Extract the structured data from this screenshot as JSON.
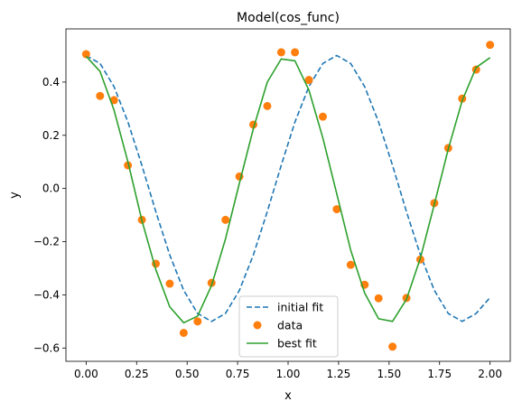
{
  "chart_data": {
    "type": "line",
    "title": "Model(cos_func)",
    "xlabel": "x",
    "ylabel": "y",
    "xlim": [
      -0.1,
      2.1
    ],
    "ylim": [
      -0.65,
      0.6
    ],
    "xticks": [
      0.0,
      0.25,
      0.5,
      0.75,
      1.0,
      1.25,
      1.5,
      1.75,
      2.0
    ],
    "xtick_labels": [
      "0.00",
      "0.25",
      "0.50",
      "0.75",
      "1.00",
      "1.25",
      "1.50",
      "1.75",
      "2.00"
    ],
    "yticks": [
      -0.6,
      -0.4,
      -0.2,
      0.0,
      0.2,
      0.4
    ],
    "ytick_labels": [
      "−0.6",
      "−0.4",
      "−0.2",
      "0.0",
      "0.2",
      "0.4"
    ],
    "grid": false,
    "legend_position": "lower-center",
    "series": [
      {
        "name": "initial fit",
        "style": "dashed",
        "color": "#1f77b4",
        "x": [
          0.0,
          0.069,
          0.138,
          0.207,
          0.276,
          0.345,
          0.414,
          0.483,
          0.552,
          0.621,
          0.69,
          0.759,
          0.828,
          0.897,
          0.966,
          1.034,
          1.103,
          1.172,
          1.241,
          1.31,
          1.379,
          1.448,
          1.517,
          1.586,
          1.655,
          1.724,
          1.793,
          1.862,
          1.931,
          2.0
        ],
        "y": [
          0.5,
          0.47,
          0.383,
          0.25,
          0.087,
          -0.087,
          -0.25,
          -0.383,
          -0.47,
          -0.5,
          -0.47,
          -0.383,
          -0.25,
          -0.087,
          0.087,
          0.25,
          0.383,
          0.47,
          0.5,
          0.47,
          0.383,
          0.25,
          0.087,
          -0.087,
          -0.25,
          -0.383,
          -0.47,
          -0.5,
          -0.47,
          -0.41
        ]
      },
      {
        "name": "data",
        "style": "markers",
        "color": "#ff7f0e",
        "x": [
          0.0,
          0.069,
          0.138,
          0.207,
          0.276,
          0.345,
          0.414,
          0.483,
          0.552,
          0.621,
          0.69,
          0.759,
          0.828,
          0.897,
          0.966,
          1.034,
          1.103,
          1.172,
          1.241,
          1.31,
          1.379,
          1.448,
          1.517,
          1.586,
          1.655,
          1.724,
          1.793,
          1.862,
          1.931,
          2.0
        ],
        "y": [
          0.505,
          0.348,
          0.332,
          0.087,
          -0.118,
          -0.283,
          -0.358,
          -0.543,
          -0.5,
          -0.355,
          -0.118,
          0.045,
          0.24,
          0.31,
          0.512,
          0.512,
          0.408,
          0.27,
          -0.078,
          -0.287,
          -0.362,
          -0.413,
          -0.595,
          -0.412,
          -0.267,
          -0.055,
          0.152,
          0.338,
          0.447,
          0.54
        ]
      },
      {
        "name": "best fit",
        "style": "solid",
        "color": "#2ca02c",
        "x": [
          0.0,
          0.069,
          0.138,
          0.207,
          0.276,
          0.345,
          0.414,
          0.483,
          0.552,
          0.621,
          0.69,
          0.759,
          0.828,
          0.897,
          0.966,
          1.034,
          1.103,
          1.172,
          1.241,
          1.31,
          1.379,
          1.448,
          1.517,
          1.586,
          1.655,
          1.724,
          1.793,
          1.862,
          1.931,
          2.0
        ],
        "y": [
          0.497,
          0.44,
          0.295,
          0.1,
          -0.12,
          -0.305,
          -0.445,
          -0.505,
          -0.48,
          -0.365,
          -0.19,
          0.02,
          0.225,
          0.4,
          0.487,
          0.48,
          0.37,
          0.19,
          -0.02,
          -0.232,
          -0.393,
          -0.49,
          -0.5,
          -0.417,
          -0.262,
          -0.06,
          0.148,
          0.33,
          0.455,
          0.492
        ]
      }
    ]
  }
}
